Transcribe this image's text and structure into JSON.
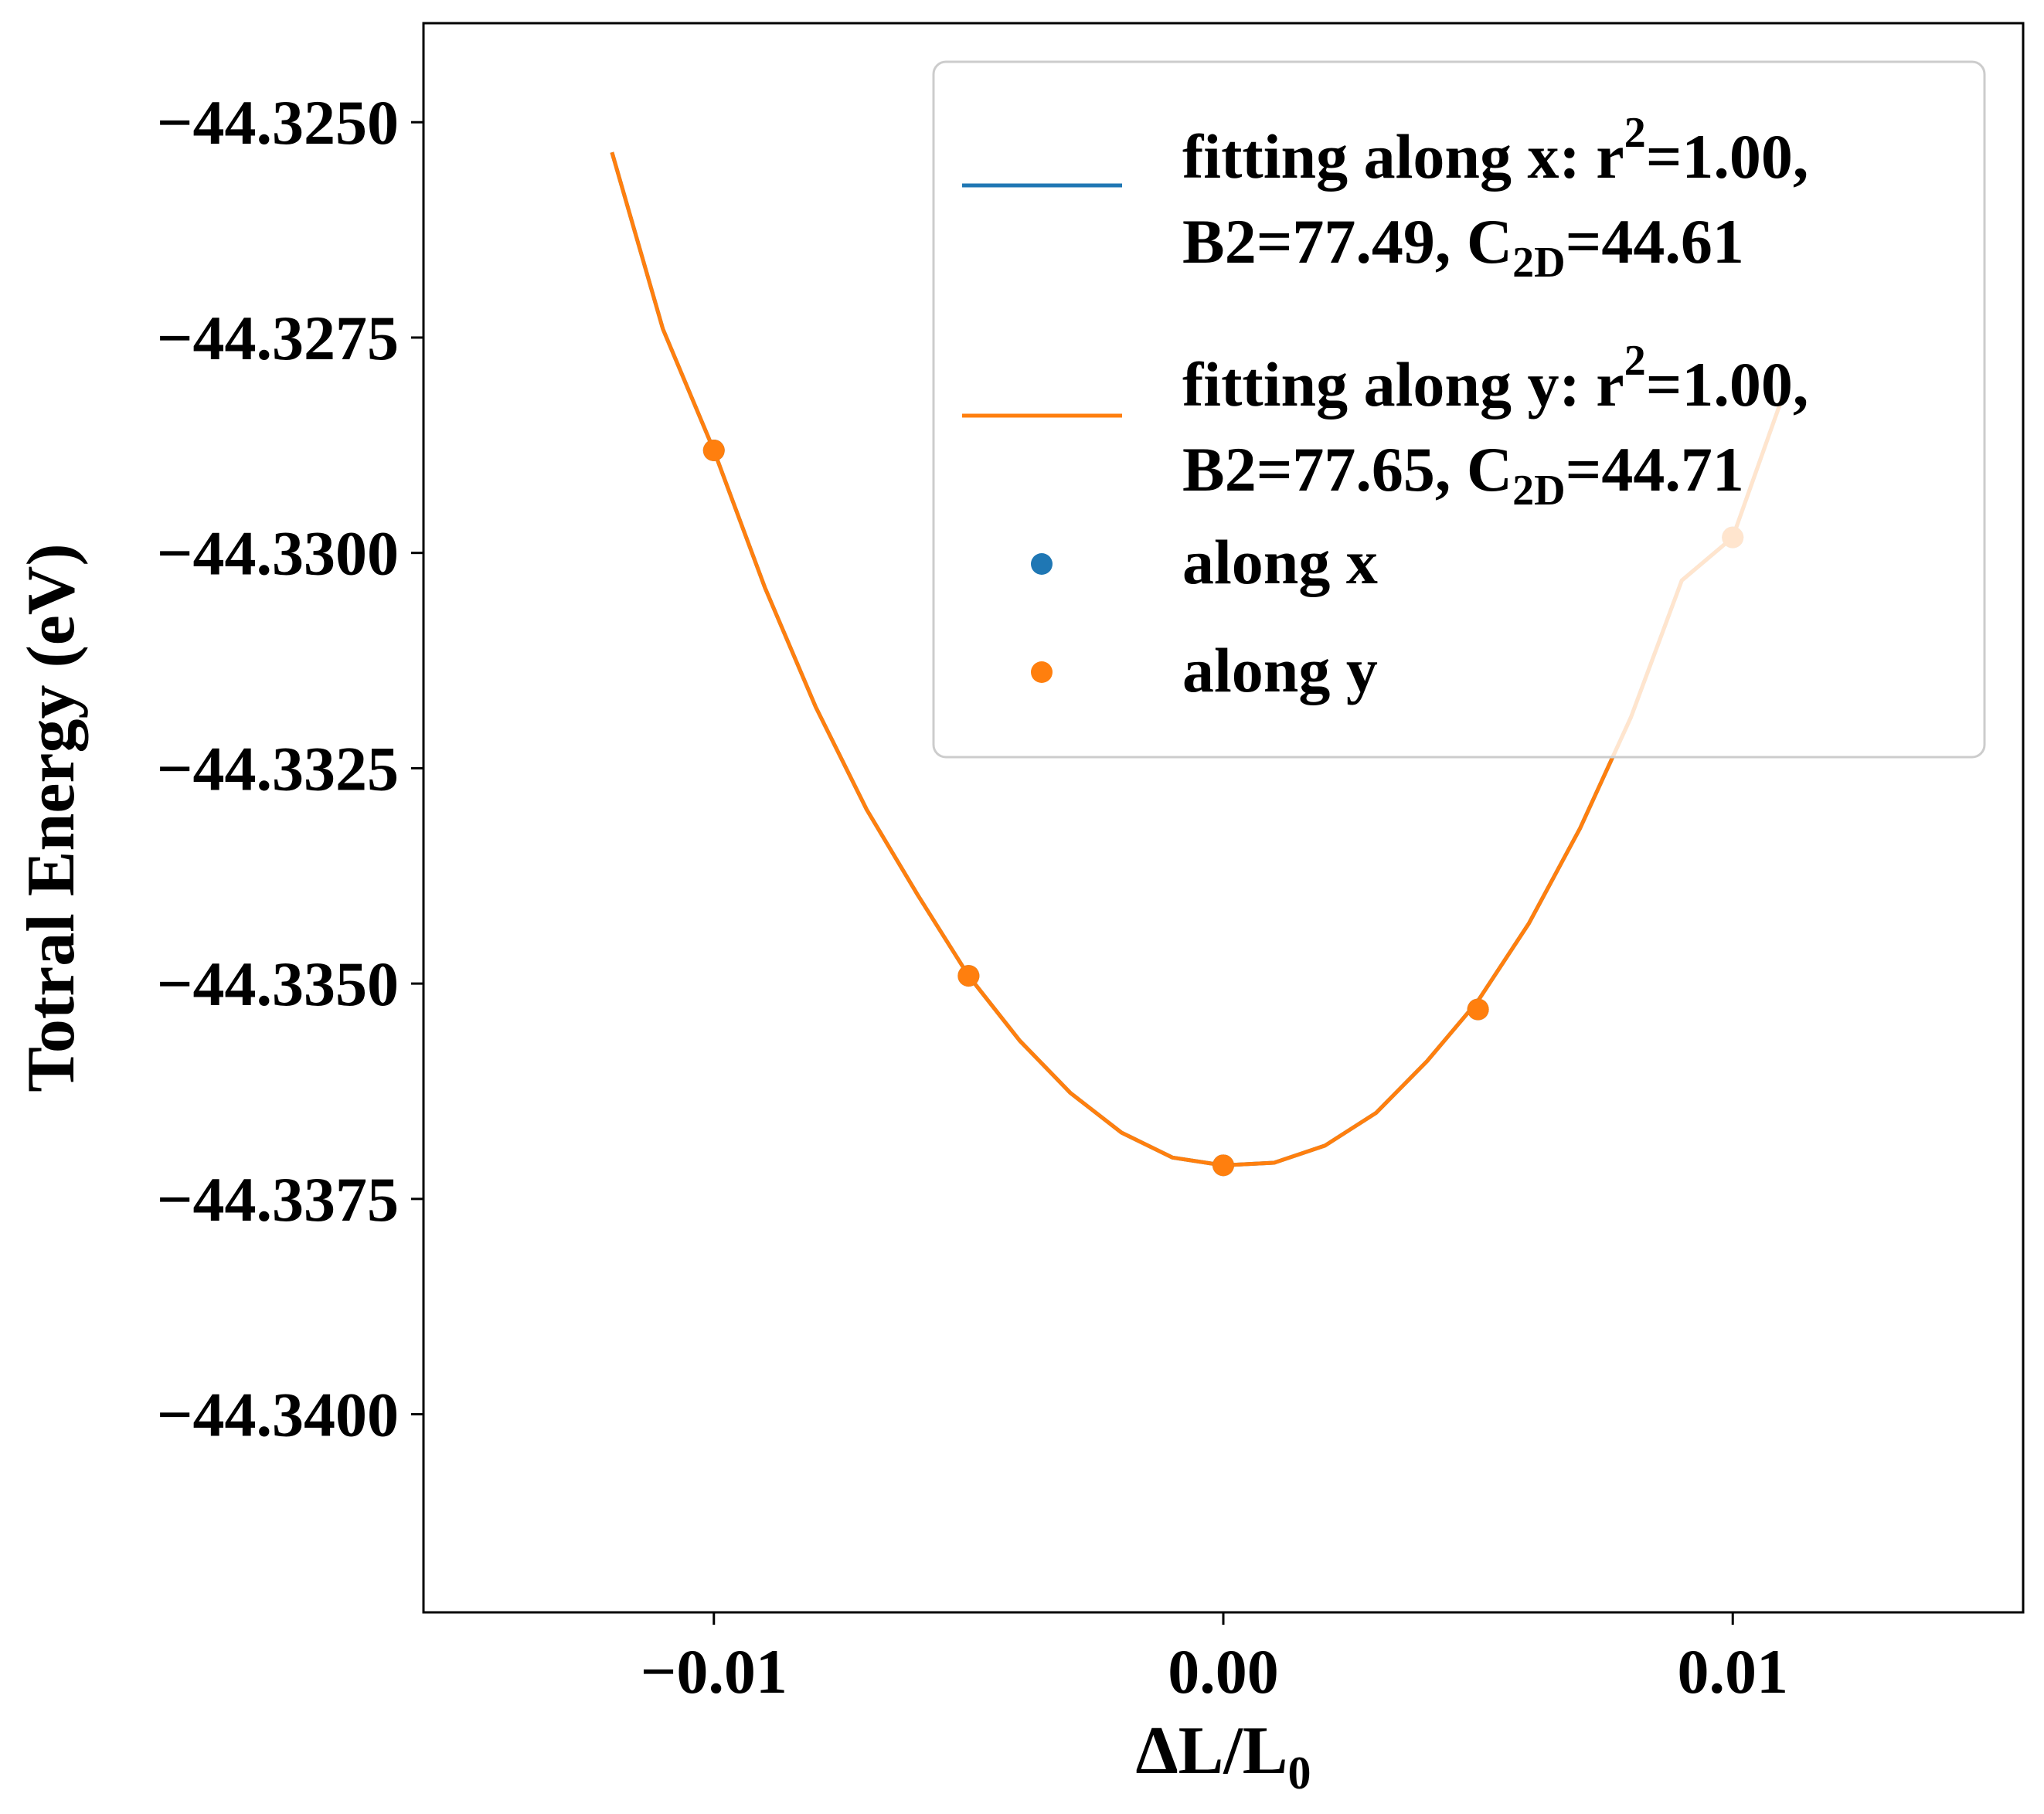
{
  "chart_data": {
    "type": "line",
    "xlabel": "ΔL/L0",
    "xlabel_parts": {
      "main": "ΔL/L",
      "sub": "0"
    },
    "ylabel": "Totral Energy (eV)",
    "xlim": [
      -0.0157,
      0.0157
    ],
    "ylim": [
      -44.3423,
      -44.32385
    ],
    "x_ticks": [
      -0.01,
      0.0,
      0.01
    ],
    "x_tick_labels": [
      "−0.01",
      "0.00",
      "0.01"
    ],
    "y_ticks": [
      -44.325,
      -44.3275,
      -44.33,
      -44.3325,
      -44.335,
      -44.3375,
      -44.34
    ],
    "y_tick_labels": [
      "−44.3250",
      "−44.3275",
      "−44.3300",
      "−44.3325",
      "−44.3350",
      "−44.3375",
      "−44.3400"
    ],
    "grid": false,
    "legend_position": "top-right",
    "colors": {
      "x": "#1f77b4",
      "y": "#ff7f0e"
    },
    "series": [
      {
        "name": "fitting along x",
        "kind": "line",
        "color": "#1f77b4",
        "legend_lines": [
          {
            "a": "fitting along x: r",
            "sup": "2",
            "b": "=1.00,"
          },
          {
            "a": "B2=77.49, C",
            "sub": "2D",
            "b": "=44.61"
          }
        ],
        "x": [
          -0.012,
          -0.011,
          -0.01,
          -0.009,
          -0.008,
          -0.007,
          -0.006,
          -0.005,
          -0.004,
          -0.003,
          -0.002,
          -0.001,
          0.0,
          0.001,
          0.002,
          0.003,
          0.004,
          0.005,
          0.006,
          0.007,
          0.008,
          0.009,
          0.01,
          0.011
        ],
        "y": [
          -44.32535,
          -44.3274,
          -44.32881,
          -44.3304,
          -44.33179,
          -44.33298,
          -44.33397,
          -44.33491,
          -44.33566,
          -44.33627,
          -44.33673,
          -44.33702,
          -44.33711,
          -44.33708,
          -44.33688,
          -44.3365,
          -44.3359,
          -44.3352,
          -44.3343,
          -44.3332,
          -44.33191,
          -44.33032,
          -44.32982,
          -44.32815
        ]
      },
      {
        "name": "fitting along y",
        "kind": "line",
        "color": "#ff7f0e",
        "legend_lines": [
          {
            "a": "fitting along y: r",
            "sup": "2",
            "b": "=1.00,"
          },
          {
            "a": "B2=77.65, C",
            "sub": "2D",
            "b": "=44.71"
          }
        ],
        "x": [
          -0.012,
          -0.011,
          -0.01,
          -0.009,
          -0.008,
          -0.007,
          -0.006,
          -0.005,
          -0.004,
          -0.003,
          -0.002,
          -0.001,
          0.0,
          0.001,
          0.002,
          0.003,
          0.004,
          0.005,
          0.006,
          0.007,
          0.008,
          0.009,
          0.01,
          0.011
        ],
        "y": [
          -44.32535,
          -44.3274,
          -44.32881,
          -44.3304,
          -44.33179,
          -44.33298,
          -44.33397,
          -44.33491,
          -44.33566,
          -44.33627,
          -44.33673,
          -44.33702,
          -44.33711,
          -44.33708,
          -44.33688,
          -44.3365,
          -44.3359,
          -44.3352,
          -44.3343,
          -44.3332,
          -44.33191,
          -44.33032,
          -44.32982,
          -44.32815
        ]
      },
      {
        "name": "along x",
        "kind": "scatter",
        "color": "#1f77b4",
        "x": [
          -0.01,
          -0.005,
          0.0,
          0.005,
          0.01
        ],
        "y": [
          -44.32881,
          -44.33491,
          -44.33711,
          -44.3353,
          -44.32982
        ]
      },
      {
        "name": "along y",
        "kind": "scatter",
        "color": "#ff7f0e",
        "x": [
          -0.01,
          -0.005,
          0.0,
          0.005,
          0.01
        ],
        "y": [
          -44.32881,
          -44.33491,
          -44.33711,
          -44.3353,
          -44.32982
        ]
      }
    ]
  }
}
